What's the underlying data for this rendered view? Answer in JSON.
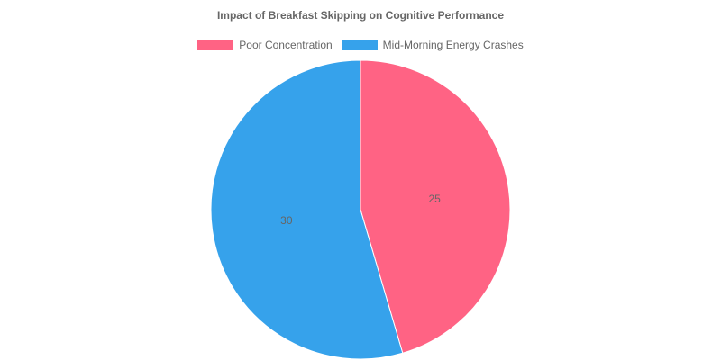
{
  "chart_data": {
    "type": "pie",
    "title": "Impact of Breakfast Skipping on Cognitive Performance",
    "categories": [
      "Poor Concentration",
      "Mid-Morning Energy Crashes"
    ],
    "values": [
      25,
      30
    ],
    "colors": [
      "#ff6384",
      "#36a2eb"
    ],
    "legend_position": "top",
    "start_angle": "top, clockwise"
  }
}
